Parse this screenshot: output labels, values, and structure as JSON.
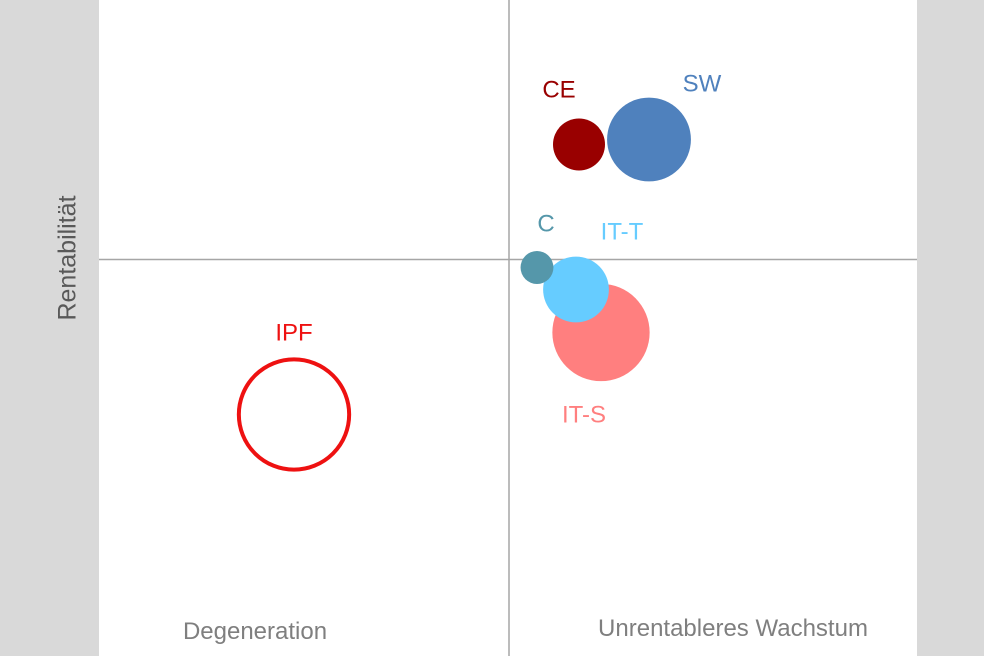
{
  "chart_data": {
    "type": "bubble",
    "ylabel": "Rentabilität",
    "quadrant_labels": [
      "Degeneration",
      "Unrentableres Wachstum"
    ],
    "series": [
      {
        "name": "CE",
        "x": 0.7,
        "y": 1.15,
        "size": 1.0,
        "color": "#990000",
        "filled": true
      },
      {
        "name": "SW",
        "x": 1.4,
        "y": 1.2,
        "size": 2.6,
        "color": "#4f81bd",
        "filled": true
      },
      {
        "name": "C",
        "x": 0.28,
        "y": -0.08,
        "size": 0.4,
        "color": "#5597aa",
        "filled": true
      },
      {
        "name": "IT-T",
        "x": 0.67,
        "y": -0.3,
        "size": 1.6,
        "color": "#66ccff",
        "filled": true
      },
      {
        "name": "IT-S",
        "x": 0.92,
        "y": -0.73,
        "size": 3.5,
        "color": "#ff7f7f",
        "filled": true
      },
      {
        "name": "IPF",
        "x": -2.15,
        "y": -1.55,
        "size": 4.5,
        "color": "#ee1111",
        "filled": false
      }
    ],
    "axis_color": "#a6a6a6"
  }
}
